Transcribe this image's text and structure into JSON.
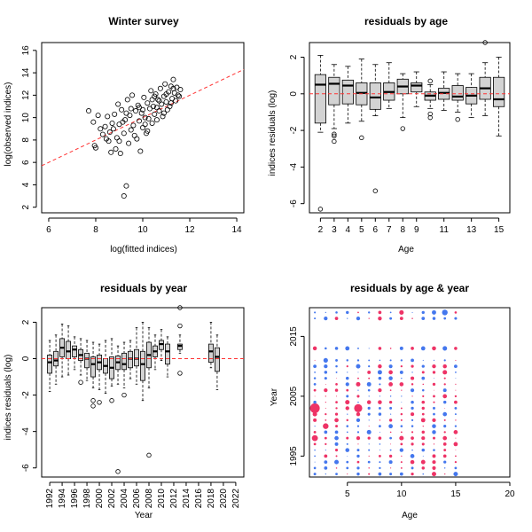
{
  "chart_data": [
    {
      "type": "scatter",
      "title": "Winter survey",
      "xlabel": "log(fitted indices)",
      "ylabel": "log(observed indices)",
      "xlim": [
        6,
        14
      ],
      "ylim": [
        2,
        16
      ],
      "xticks": [
        "6",
        "8",
        "10",
        "12",
        "14"
      ],
      "yticks": [
        "2",
        "4",
        "6",
        "8",
        "10",
        "12",
        "14",
        "16"
      ],
      "reference_line": {
        "slope": 1,
        "intercept": 0,
        "color": "#ff3333",
        "style": "dashed"
      },
      "points": [
        [
          9.3,
          3.9
        ],
        [
          9.2,
          3.0
        ],
        [
          7.7,
          10.6
        ],
        [
          7.9,
          9.6
        ],
        [
          8.1,
          10.2
        ],
        [
          8.2,
          9.0
        ],
        [
          8.0,
          7.3
        ],
        [
          7.95,
          7.5
        ],
        [
          8.3,
          8.5
        ],
        [
          8.4,
          9.2
        ],
        [
          8.5,
          10.1
        ],
        [
          8.6,
          8.7
        ],
        [
          8.7,
          9.5
        ],
        [
          8.8,
          10.3
        ],
        [
          8.55,
          7.9
        ],
        [
          8.65,
          6.9
        ],
        [
          8.9,
          8.2
        ],
        [
          9.0,
          9.4
        ],
        [
          9.1,
          10.7
        ],
        [
          8.95,
          11.2
        ],
        [
          8.85,
          7.2
        ],
        [
          9.05,
          6.8
        ],
        [
          9.2,
          8.6
        ],
        [
          9.25,
          9.8
        ],
        [
          9.35,
          11.6
        ],
        [
          9.4,
          7.7
        ],
        [
          9.45,
          10.2
        ],
        [
          9.5,
          8.9
        ],
        [
          9.55,
          12.0
        ],
        [
          9.6,
          9.3
        ],
        [
          9.7,
          10.6
        ],
        [
          9.75,
          8.1
        ],
        [
          9.8,
          11.1
        ],
        [
          9.85,
          9.7
        ],
        [
          9.9,
          7.0
        ],
        [
          9.95,
          10.4
        ],
        [
          10.0,
          9.1
        ],
        [
          10.05,
          11.8
        ],
        [
          10.1,
          10.0
        ],
        [
          10.15,
          8.6
        ],
        [
          10.2,
          11.3
        ],
        [
          10.25,
          9.9
        ],
        [
          10.3,
          10.8
        ],
        [
          10.35,
          12.4
        ],
        [
          10.4,
          9.5
        ],
        [
          10.45,
          11.0
        ],
        [
          10.5,
          10.3
        ],
        [
          10.55,
          12.1
        ],
        [
          10.6,
          9.8
        ],
        [
          10.65,
          11.6
        ],
        [
          10.7,
          10.6
        ],
        [
          10.75,
          12.6
        ],
        [
          10.8,
          11.2
        ],
        [
          10.85,
          10.1
        ],
        [
          10.9,
          11.9
        ],
        [
          10.95,
          13.0
        ],
        [
          11.0,
          11.4
        ],
        [
          11.05,
          10.7
        ],
        [
          11.1,
          12.3
        ],
        [
          11.15,
          11.0
        ],
        [
          11.2,
          12.8
        ],
        [
          11.25,
          11.7
        ],
        [
          11.3,
          13.4
        ],
        [
          11.35,
          12.2
        ],
        [
          11.4,
          11.5
        ],
        [
          11.45,
          12.7
        ],
        [
          11.5,
          12.0
        ],
        [
          11.55,
          11.9
        ],
        [
          11.6,
          12.5
        ],
        [
          9.15,
          9.6
        ],
        [
          9.3,
          10.4
        ],
        [
          9.65,
          8.4
        ],
        [
          10.0,
          10.7
        ],
        [
          10.4,
          11.6
        ],
        [
          10.7,
          11.5
        ],
        [
          11.0,
          12.1
        ],
        [
          8.75,
          9.0
        ],
        [
          9.5,
          10.8
        ],
        [
          10.2,
          8.8
        ],
        [
          10.6,
          10.9
        ],
        [
          8.45,
          8.1
        ],
        [
          9.85,
          10.9
        ],
        [
          10.9,
          10.4
        ],
        [
          11.2,
          11.3
        ],
        [
          9.0,
          7.9
        ],
        [
          10.1,
          9.4
        ],
        [
          10.5,
          11.9
        ],
        [
          11.3,
          12.6
        ]
      ]
    },
    {
      "type": "boxplot",
      "title": "residuals by age",
      "xlabel": "Age",
      "ylabel": "indices residuals (log)",
      "ylim": [
        -6.5,
        2.8
      ],
      "yticks": [
        "-6",
        "-4",
        "-2",
        "0",
        "2"
      ],
      "xticks": [
        "2",
        "3",
        "4",
        "5",
        "6",
        "7",
        "8",
        "9",
        "11",
        "13",
        "15"
      ],
      "boxes": [
        {
          "label": "2",
          "min": -2.1,
          "q1": -1.6,
          "median": 0.5,
          "q3": 1.05,
          "max": 2.1,
          "outliers": [
            -6.3
          ]
        },
        {
          "label": "3",
          "min": -1.9,
          "q1": -0.6,
          "median": 0.55,
          "q3": 0.9,
          "max": 1.6,
          "outliers": [
            -2.2,
            -2.3,
            -2.6
          ]
        },
        {
          "label": "4",
          "min": -1.6,
          "q1": -0.55,
          "median": 0.45,
          "q3": 0.75,
          "max": 1.5,
          "outliers": []
        },
        {
          "label": "5",
          "min": -1.5,
          "q1": -0.6,
          "median": 0.05,
          "q3": 0.6,
          "max": 1.9,
          "outliers": [
            -2.4
          ]
        },
        {
          "label": "6",
          "min": -1.2,
          "q1": -0.85,
          "median": -0.2,
          "q3": 0.6,
          "max": 1.6,
          "outliers": [
            -5.3
          ]
        },
        {
          "label": "7",
          "min": -0.8,
          "q1": -0.35,
          "median": 0.1,
          "q3": 0.6,
          "max": 1.7,
          "outliers": []
        },
        {
          "label": "8",
          "min": -1.3,
          "q1": 0.0,
          "median": 0.4,
          "q3": 0.8,
          "max": 1.1,
          "outliers": [
            -1.9
          ]
        },
        {
          "label": "9",
          "min": -0.7,
          "q1": 0.1,
          "median": 0.45,
          "q3": 0.6,
          "max": 1.2,
          "outliers": []
        },
        {
          "label": "10",
          "min": -0.8,
          "q1": -0.35,
          "median": -0.1,
          "q3": 0.1,
          "max": 0.5,
          "outliers": [
            0.7,
            -1.1,
            -1.3
          ]
        },
        {
          "label": "11",
          "min": -0.9,
          "q1": -0.3,
          "median": 0.05,
          "q3": 0.3,
          "max": 1.2,
          "outliers": []
        },
        {
          "label": "12",
          "min": -1.0,
          "q1": -0.35,
          "median": -0.15,
          "q3": 0.45,
          "max": 1.1,
          "outliers": [
            -1.4
          ]
        },
        {
          "label": "13",
          "min": -1.3,
          "q1": -0.55,
          "median": -0.1,
          "q3": 0.35,
          "max": 1.1,
          "outliers": []
        },
        {
          "label": "14",
          "min": -1.2,
          "q1": -0.3,
          "median": 0.3,
          "q3": 0.9,
          "max": 1.7,
          "outliers": [
            2.8
          ]
        },
        {
          "label": "15",
          "min": -2.3,
          "q1": -0.7,
          "median": -0.3,
          "q3": 0.9,
          "max": 2.0,
          "outliers": []
        }
      ],
      "reference_line": {
        "y": 0,
        "color": "#ff3333",
        "style": "dashed"
      }
    },
    {
      "type": "boxplot",
      "title": "residuals by year",
      "xlabel": "Year",
      "ylabel": "indices residuals (log)",
      "ylim": [
        -6.5,
        2.8
      ],
      "yticks": [
        "-6",
        "-4",
        "-2",
        "0",
        "2"
      ],
      "xticks": [
        "1992",
        "1994",
        "1996",
        "1998",
        "2000",
        "2002",
        "2004",
        "2006",
        "2008",
        "2010",
        "2012",
        "2014",
        "2016",
        "2018",
        "2020",
        "2022"
      ],
      "boxes": [
        {
          "label": "1992",
          "min": -1.8,
          "q1": -0.8,
          "median": -0.2,
          "q3": 0.2,
          "max": 1.0,
          "outliers": []
        },
        {
          "label": "1993",
          "min": -1.4,
          "q1": -0.4,
          "median": -0.1,
          "q3": 0.4,
          "max": 1.3,
          "outliers": []
        },
        {
          "label": "1994",
          "min": -1.0,
          "q1": 0.1,
          "median": 0.6,
          "q3": 1.1,
          "max": 1.9,
          "outliers": []
        },
        {
          "label": "1995",
          "min": -0.9,
          "q1": 0.0,
          "median": 0.4,
          "q3": 0.95,
          "max": 1.8,
          "outliers": []
        },
        {
          "label": "1996",
          "min": -0.6,
          "q1": 0.1,
          "median": 0.5,
          "q3": 0.7,
          "max": 1.2,
          "outliers": []
        },
        {
          "label": "1997",
          "min": -0.9,
          "q1": -0.1,
          "median": 0.2,
          "q3": 0.5,
          "max": 1.1,
          "outliers": [
            -1.3
          ]
        },
        {
          "label": "1998",
          "min": -1.2,
          "q1": -0.5,
          "median": 0.0,
          "q3": 0.3,
          "max": 1.0,
          "outliers": []
        },
        {
          "label": "1999",
          "min": -1.6,
          "q1": -1.0,
          "median": -0.3,
          "q3": 0.1,
          "max": 0.9,
          "outliers": [
            -2.3,
            -2.6
          ]
        },
        {
          "label": "2000",
          "min": -1.7,
          "q1": -0.6,
          "median": -0.2,
          "q3": 0.2,
          "max": 0.8,
          "outliers": [
            -2.4
          ]
        },
        {
          "label": "2001",
          "min": -1.9,
          "q1": -0.8,
          "median": -0.4,
          "q3": 0.0,
          "max": 1.0,
          "outliers": []
        },
        {
          "label": "2002",
          "min": -1.5,
          "q1": -1.1,
          "median": -0.5,
          "q3": 0.1,
          "max": 1.1,
          "outliers": [
            -2.3
          ]
        },
        {
          "label": "2003",
          "min": -1.4,
          "q1": -0.6,
          "median": -0.2,
          "q3": 0.15,
          "max": 0.7,
          "outliers": [
            -6.2
          ]
        },
        {
          "label": "2004",
          "min": -1.6,
          "q1": -0.6,
          "median": -0.3,
          "q3": 0.3,
          "max": 0.9,
          "outliers": [
            -2.0
          ]
        },
        {
          "label": "2005",
          "min": -1.1,
          "q1": -0.5,
          "median": 0.0,
          "q3": 0.4,
          "max": 1.0,
          "outliers": []
        },
        {
          "label": "2006",
          "min": -1.4,
          "q1": -0.4,
          "median": 0.0,
          "q3": 0.5,
          "max": 1.7,
          "outliers": []
        },
        {
          "label": "2007",
          "min": -2.3,
          "q1": -1.2,
          "median": -0.3,
          "q3": 0.4,
          "max": 2.0,
          "outliers": []
        },
        {
          "label": "2008",
          "min": -1.6,
          "q1": -0.5,
          "median": 0.2,
          "q3": 0.9,
          "max": 1.7,
          "outliers": [
            -5.3
          ]
        },
        {
          "label": "2009",
          "min": -0.6,
          "q1": 0.1,
          "median": 0.4,
          "q3": 0.7,
          "max": 1.3,
          "outliers": []
        },
        {
          "label": "2010",
          "min": -0.1,
          "q1": 0.5,
          "median": 0.8,
          "q3": 1.0,
          "max": 1.6,
          "outliers": []
        },
        {
          "label": "2011",
          "min": -1.0,
          "q1": -0.3,
          "median": 0.4,
          "q3": 0.8,
          "max": 1.2,
          "outliers": []
        },
        {
          "label": "2013",
          "min": 0.3,
          "q1": 0.5,
          "median": 0.7,
          "q3": 0.8,
          "max": 1.3,
          "outliers": [
            2.8,
            1.8,
            -0.8
          ]
        },
        {
          "label": "2018",
          "min": -0.5,
          "q1": -0.2,
          "median": 0.4,
          "q3": 0.8,
          "max": 2.0,
          "outliers": []
        },
        {
          "label": "2019",
          "min": -1.7,
          "q1": -0.7,
          "median": 0.1,
          "q3": 0.6,
          "max": 1.3,
          "outliers": []
        }
      ],
      "reference_line": {
        "y": 0,
        "color": "#ff3333",
        "style": "dashed"
      }
    },
    {
      "type": "bubble",
      "title": "residuals by age & year",
      "xlabel": "Age",
      "ylabel": "Year",
      "xlim": [
        1.5,
        20
      ],
      "ylim": [
        1991.5,
        2019.8
      ],
      "xticks": [
        "5",
        "10",
        "15",
        "20"
      ],
      "yticks": [
        "1995",
        "2005",
        "2015"
      ],
      "positive_color": "#ee3366",
      "negative_color": "#4477ee",
      "ages": [
        2,
        3,
        4,
        5,
        6,
        7,
        8,
        9,
        10,
        11,
        12,
        13,
        14,
        15
      ],
      "years": [
        1992,
        1993,
        1994,
        1995,
        1996,
        1997,
        1998,
        1999,
        2000,
        2001,
        2002,
        2003,
        2004,
        2005,
        2006,
        2007,
        2008,
        2009,
        2010,
        2011,
        2013,
        2018,
        2019
      ]
    }
  ]
}
